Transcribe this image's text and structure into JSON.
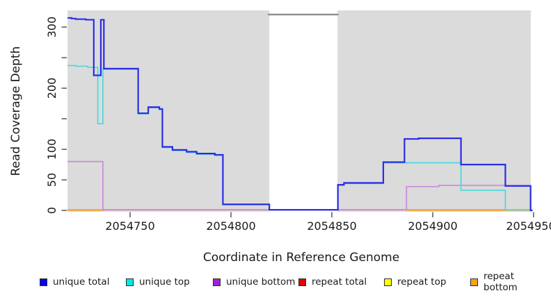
{
  "figure": {
    "xaxis_title": "Coordinate in Reference Genome",
    "yaxis_title": "Read Coverage Depth"
  },
  "axes": {
    "x": {
      "ticks": [
        {
          "label": "2054750"
        },
        {
          "label": "2054800"
        },
        {
          "label": "2054850"
        },
        {
          "label": "2054900"
        },
        {
          "label": "2054950"
        }
      ]
    },
    "y": {
      "ticks": [
        {
          "label": "300"
        },
        {
          "label": "200"
        },
        {
          "label": "100"
        },
        {
          "label": "50"
        },
        {
          "label": "0"
        }
      ]
    }
  },
  "legend": [
    {
      "label": "unique total",
      "color": "#0606EE"
    },
    {
      "label": "unique top",
      "color": "#00E8E8"
    },
    {
      "label": "unique bottom",
      "color": "#A120E0"
    },
    {
      "label": "repeat total",
      "color": "#E60000"
    },
    {
      "label": "repeat top",
      "color": "#FFFF00"
    },
    {
      "label": "repeat bottom",
      "color": "#FFA010"
    }
  ],
  "chart_data": {
    "type": "line-step",
    "xlabel": "Coordinate in Reference Genome",
    "ylabel": "Read Coverage Depth",
    "xlim": [
      2054719,
      2054951
    ],
    "ylim": [
      0,
      327
    ],
    "x_ticks": [
      2054750,
      2054800,
      2054850,
      2054900,
      2054950
    ],
    "y_ticks_labeled": [
      0,
      50,
      100,
      200,
      300
    ],
    "y_ticks_unlabeled": [
      150,
      250
    ],
    "grid": false,
    "legend_position": "bottom",
    "background": {
      "panel_color": "#DBDBDB",
      "regions": [
        {
          "name": "covered-region-left",
          "x0": 2054719.0,
          "x1": 2054819.0,
          "color": "#DBDBDB"
        },
        {
          "name": "covered-region-right",
          "x0": 2054852.8,
          "x1": 2054948.6,
          "color": "#DBDBDB"
        }
      ],
      "gap_marker": {
        "name": "gap-top-line",
        "x0": 2054818.3,
        "x1": 2054853.3,
        "y": 320.5,
        "color": "#8C8C8C"
      }
    },
    "series": [
      {
        "id": "unique-total",
        "name": "unique total",
        "color": "#2B2BE8",
        "width": 2.2,
        "paths": [
          [
            [
              2054719,
              315
            ],
            [
              2054721,
              314
            ],
            [
              2054723,
              313
            ],
            [
              2054728,
              312
            ],
            [
              2054732,
              221
            ],
            [
              2054735.5,
              312
            ],
            [
              2054737,
              232
            ],
            [
              2054754,
              159
            ],
            [
              2054759,
              169
            ],
            [
              2054764.5,
              166
            ],
            [
              2054766,
              104
            ],
            [
              2054771,
              99
            ],
            [
              2054778,
              96
            ],
            [
              2054783,
              93
            ],
            [
              2054792,
              91
            ],
            [
              2054796,
              10
            ],
            [
              2054819,
              1
            ],
            [
              2054853,
              42
            ],
            [
              2054856,
              45
            ],
            [
              2054875.5,
              79
            ],
            [
              2054886,
              117
            ],
            [
              2054893,
              118
            ],
            [
              2054914,
              75
            ],
            [
              2054936,
              40
            ],
            [
              2054948.5,
              0
            ],
            [
              2054949.5,
              0
            ]
          ]
        ]
      },
      {
        "id": "unique-top",
        "name": "unique top",
        "color": "#49D8DC",
        "width": 1.7,
        "paths": [
          [
            [
              2054719,
              237
            ],
            [
              2054723,
              236
            ],
            [
              2054729,
              234
            ],
            [
              2054734,
              142
            ],
            [
              2054736.5,
              231
            ],
            [
              2054754,
              158
            ],
            [
              2054759,
              168
            ],
            [
              2054764.5,
              165
            ],
            [
              2054766,
              103
            ],
            [
              2054771,
              98
            ],
            [
              2054778,
              95
            ],
            [
              2054783,
              92
            ],
            [
              2054792,
              90
            ],
            [
              2054796,
              9
            ],
            [
              2054819,
              0.8
            ],
            [
              2054853,
              41
            ],
            [
              2054856,
              44
            ],
            [
              2054875.5,
              78
            ],
            [
              2054914,
              33
            ],
            [
              2054936,
              1
            ],
            [
              2054948.5,
              0
            ]
          ]
        ]
      },
      {
        "id": "unique-bottom",
        "name": "unique bottom",
        "color": "#C78BDB",
        "width": 1.7,
        "paths": [
          [
            [
              2054719,
              80
            ],
            [
              2054736.5,
              1.2
            ],
            [
              2054887,
              39
            ],
            [
              2054903,
              41
            ],
            [
              2054948.5,
              0
            ]
          ]
        ]
      },
      {
        "id": "repeat-total",
        "name": "repeat total",
        "color": "#E4566E",
        "width": 1.5,
        "paths": [
          [
            [
              2054719,
              0.9
            ],
            [
              2054949,
              0.9
            ]
          ]
        ]
      },
      {
        "id": "repeat-top",
        "name": "repeat top",
        "color": "#FFE500",
        "width": 1.4,
        "paths": [
          [
            [
              2054719,
              0.8
            ],
            [
              2054949,
              0.8
            ]
          ]
        ]
      },
      {
        "id": "repeat-bottom",
        "name": "repeat bottom",
        "color": "#FF9E1B",
        "width": 1.7,
        "paths": [
          [
            [
              2054719,
              0.4
            ],
            [
              2054737,
              0.4
            ]
          ],
          [
            [
              2054887,
              0.4
            ],
            [
              2054949,
              0.4
            ]
          ]
        ]
      }
    ],
    "draw_order": [
      4,
      3,
      5,
      2,
      1,
      0
    ]
  }
}
